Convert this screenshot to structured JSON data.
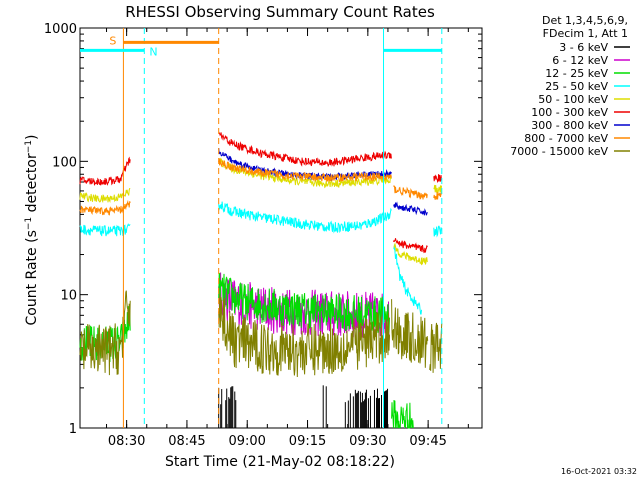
{
  "chart_data": {
    "type": "line",
    "title": "RHESSI Observing Summary Count Rates",
    "xlabel": "Start Time (21-May-02 08:18:22)",
    "ylabel": "Count Rate (s⁻¹ detector⁻¹)",
    "xscale": "time (minutes since 08:18:22)",
    "xlim": [
      0,
      100
    ],
    "ylim": [
      1,
      1000
    ],
    "yscale": "log",
    "x_ticks": [
      {
        "t": 11.6,
        "label": "08:30"
      },
      {
        "t": 26.6,
        "label": "08:45"
      },
      {
        "t": 41.6,
        "label": "09:00"
      },
      {
        "t": 56.6,
        "label": "09:15"
      },
      {
        "t": 71.6,
        "label": "09:30"
      },
      {
        "t": 86.6,
        "label": "09:45"
      }
    ],
    "y_ticks": [
      {
        "v": 1,
        "label": "1"
      },
      {
        "v": 10,
        "label": "10"
      },
      {
        "v": 100,
        "label": "100"
      },
      {
        "v": 1000,
        "label": "1000"
      }
    ],
    "legend": {
      "header": [
        "Det 1,3,4,5,6,9,",
        "FDecim 1, Att 1"
      ],
      "placement": "right"
    },
    "series": [
      {
        "name": "3 - 6 keV",
        "color": "#000000",
        "visible_segments": [
          [
            34.5,
            39.0
          ],
          [
            60.5,
            61.5
          ],
          [
            66.0,
            77.0
          ]
        ],
        "value": 1.5
      },
      {
        "name": "6 - 12 keV",
        "color": "#cc00cc",
        "segments": [
          {
            "x": [
              34.5,
              40,
              50,
              60,
              70,
              74,
              77
            ],
            "y": [
              10,
              8.5,
              7.5,
              7.2,
              7,
              7,
              6.8
            ]
          }
        ]
      },
      {
        "name": "12 - 25 keV",
        "color": "#00dd00",
        "segments": [
          {
            "x": [
              0,
              5,
              10,
              11,
              12.5
            ],
            "y": [
              4.3,
              4.3,
              4.3,
              5,
              7
            ]
          },
          {
            "x": [
              34.5,
              40,
              50,
              60,
              70,
              77
            ],
            "y": [
              11,
              9,
              8,
              7.5,
              7.2,
              7
            ]
          },
          {
            "x": [
              77.5,
              79,
              81,
              83
            ],
            "y": [
              1.3,
              1.1,
              1.2,
              1.1
            ]
          }
        ]
      },
      {
        "name": "25 - 50 keV",
        "color": "#00ffff",
        "segments": [
          {
            "x": [
              0,
              5,
              10,
              12.5
            ],
            "y": [
              31,
              30,
              30,
              31
            ]
          },
          {
            "x": [
              34.5,
              38,
              45,
              55,
              62,
              70,
              76,
              77.5
            ],
            "y": [
              48,
              42,
              38,
              34,
              32,
              33,
              38,
              42
            ]
          },
          {
            "x": [
              78,
              79.5,
              81,
              83,
              85
            ],
            "y": [
              24,
              14,
              11,
              9,
              7.5
            ]
          },
          {
            "x": [
              88,
              90
            ],
            "y": [
              30,
              30
            ]
          }
        ]
      },
      {
        "name": "50 - 100 keV",
        "color": "#dddd00",
        "segments": [
          {
            "x": [
              0,
              5,
              10,
              12.5
            ],
            "y": [
              55,
              52,
              54,
              60
            ]
          },
          {
            "x": [
              34.5,
              38,
              45,
              55,
              62,
              70,
              77.5
            ],
            "y": [
              100,
              88,
              78,
              70,
              68,
              70,
              73
            ]
          },
          {
            "x": [
              78,
              80,
              82,
              85,
              86.5
            ],
            "y": [
              23,
              20,
              19,
              18,
              18
            ]
          },
          {
            "x": [
              88,
              90
            ],
            "y": [
              62,
              62
            ]
          }
        ]
      },
      {
        "name": "100 - 300 keV",
        "color": "#ee0000",
        "segments": [
          {
            "x": [
              0,
              5,
              10,
              12.5
            ],
            "y": [
              72,
              70,
              73,
              105
            ]
          },
          {
            "x": [
              34.5,
              38,
              45,
              55,
              62,
              70,
              77.5
            ],
            "y": [
              160,
              135,
              115,
              100,
              97,
              106,
              112
            ]
          },
          {
            "x": [
              78,
              80,
              82,
              85,
              86.5
            ],
            "y": [
              26,
              24,
              23,
              22,
              22
            ]
          },
          {
            "x": [
              88,
              90
            ],
            "y": [
              75,
              75
            ]
          }
        ]
      },
      {
        "name": "300 - 800 keV",
        "color": "#0000cc",
        "segments": [
          {
            "x": [
              34.5,
              38,
              45,
              55,
              62,
              70,
              77.5
            ],
            "y": [
              120,
              100,
              85,
              78,
              76,
              80,
              80
            ]
          },
          {
            "x": [
              78,
              80,
              82,
              85,
              86.5
            ],
            "y": [
              47,
              45,
              44,
              42,
              40
            ]
          }
        ]
      },
      {
        "name": "800 - 7000 keV",
        "color": "#ff8800",
        "segments": [
          {
            "x": [
              0,
              5,
              10,
              12.5
            ],
            "y": [
              44,
              42,
              43,
              48
            ]
          },
          {
            "x": [
              34.5,
              38,
              45,
              55,
              62,
              70,
              77.5
            ],
            "y": [
              100,
              90,
              82,
              77,
              75,
              77,
              76
            ]
          },
          {
            "x": [
              78,
              80,
              84,
              86.5
            ],
            "y": [
              62,
              60,
              56,
              55
            ]
          },
          {
            "x": [
              88,
              90
            ],
            "y": [
              55,
              55
            ]
          }
        ]
      },
      {
        "name": "7000 - 15000 keV",
        "color": "#808000",
        "segments": [
          {
            "x": [
              0,
              5,
              10,
              11,
              12.5
            ],
            "y": [
              3.8,
              3.8,
              3.9,
              6,
              9
            ]
          },
          {
            "x": [
              34.5,
              38,
              45,
              55,
              65,
              77
            ],
            "y": [
              8,
              4.5,
              4,
              3.8,
              4,
              5
            ]
          },
          {
            "x": [
              77.5,
              80,
              84,
              86.5
            ],
            "y": [
              6,
              5,
              4.5,
              4.2
            ]
          },
          {
            "x": [
              87,
              90
            ],
            "y": [
              4,
              4
            ]
          }
        ]
      }
    ],
    "annotations": {
      "flag_s": {
        "label": "S",
        "color": "#ff8800",
        "x_start": 10.8,
        "x_end": 34.5,
        "value": 780
      },
      "flag_n": {
        "label": "N",
        "color": "#00ffff",
        "bars": [
          [
            0,
            16
          ],
          [
            75.5,
            90
          ]
        ],
        "value": 680
      },
      "vlines": [
        {
          "t": 10.8,
          "color": "#ff8800",
          "style": "solid"
        },
        {
          "t": 16.0,
          "color": "#00ffff",
          "style": "dashed"
        },
        {
          "t": 34.5,
          "color": "#ff8800",
          "style": "dashed"
        },
        {
          "t": 75.5,
          "color": "#00ffff",
          "style": "solid"
        },
        {
          "t": 90.0,
          "color": "#00ffff",
          "style": "dashed"
        }
      ]
    },
    "footer_date": "16-Oct-2021 03:32"
  }
}
